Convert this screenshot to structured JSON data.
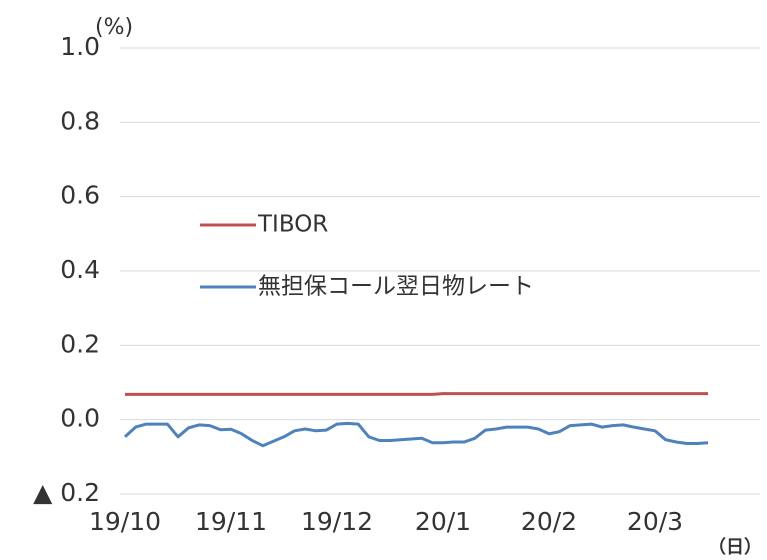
{
  "chart_data": {
    "type": "line",
    "y_unit": "(%)",
    "x_unit": "（日）",
    "categories": [
      "19/10",
      null,
      null,
      null,
      null,
      null,
      null,
      null,
      null,
      null,
      "19/11",
      null,
      null,
      null,
      null,
      null,
      null,
      null,
      null,
      null,
      "19/12",
      null,
      null,
      null,
      null,
      null,
      null,
      null,
      null,
      null,
      "20/1",
      null,
      null,
      null,
      null,
      null,
      null,
      null,
      null,
      null,
      "20/2",
      null,
      null,
      null,
      null,
      null,
      null,
      null,
      null,
      null,
      "20/3",
      null,
      null,
      null,
      null,
      null
    ],
    "series": [
      {
        "name": "TIBOR",
        "color": "#c0504d",
        "values": [
          0.068,
          0.068,
          0.068,
          0.068,
          0.068,
          0.068,
          0.068,
          0.068,
          0.068,
          0.068,
          0.068,
          0.068,
          0.068,
          0.068,
          0.068,
          0.068,
          0.068,
          0.068,
          0.068,
          0.068,
          0.068,
          0.068,
          0.068,
          0.068,
          0.068,
          0.068,
          0.068,
          0.068,
          0.068,
          0.068,
          0.07,
          0.07,
          0.07,
          0.07,
          0.07,
          0.07,
          0.07,
          0.07,
          0.07,
          0.07,
          0.07,
          0.07,
          0.07,
          0.07,
          0.07,
          0.07,
          0.07,
          0.07,
          0.07,
          0.07,
          0.07,
          0.07,
          0.07,
          0.07,
          0.07,
          0.07
        ]
      },
      {
        "name": "無担保コール翌日物レート",
        "color": "#4f81bd",
        "values": [
          -0.046,
          -0.02,
          -0.012,
          -0.012,
          -0.012,
          -0.046,
          -0.022,
          -0.014,
          -0.016,
          -0.027,
          -0.026,
          -0.038,
          -0.056,
          -0.07,
          -0.058,
          -0.046,
          -0.03,
          -0.025,
          -0.03,
          -0.028,
          -0.012,
          -0.01,
          -0.012,
          -0.046,
          -0.056,
          -0.056,
          -0.054,
          -0.052,
          -0.05,
          -0.062,
          -0.062,
          -0.06,
          -0.06,
          -0.05,
          -0.028,
          -0.025,
          -0.02,
          -0.02,
          -0.02,
          -0.025,
          -0.038,
          -0.032,
          -0.016,
          -0.014,
          -0.012,
          -0.02,
          -0.016,
          -0.014,
          -0.02,
          -0.025,
          -0.03,
          -0.054,
          -0.06,
          -0.064,
          -0.064,
          -0.062
        ]
      }
    ],
    "ylim": [
      -0.2,
      1.0
    ],
    "yticks": [
      {
        "value": -0.2,
        "label": "▲ 0.2"
      },
      {
        "value": 0,
        "label": "0.0"
      },
      0.2,
      0.4,
      0.6,
      0.8,
      {
        "value": 1,
        "label": "1.0"
      }
    ],
    "grid": true,
    "legend": "center-left"
  }
}
